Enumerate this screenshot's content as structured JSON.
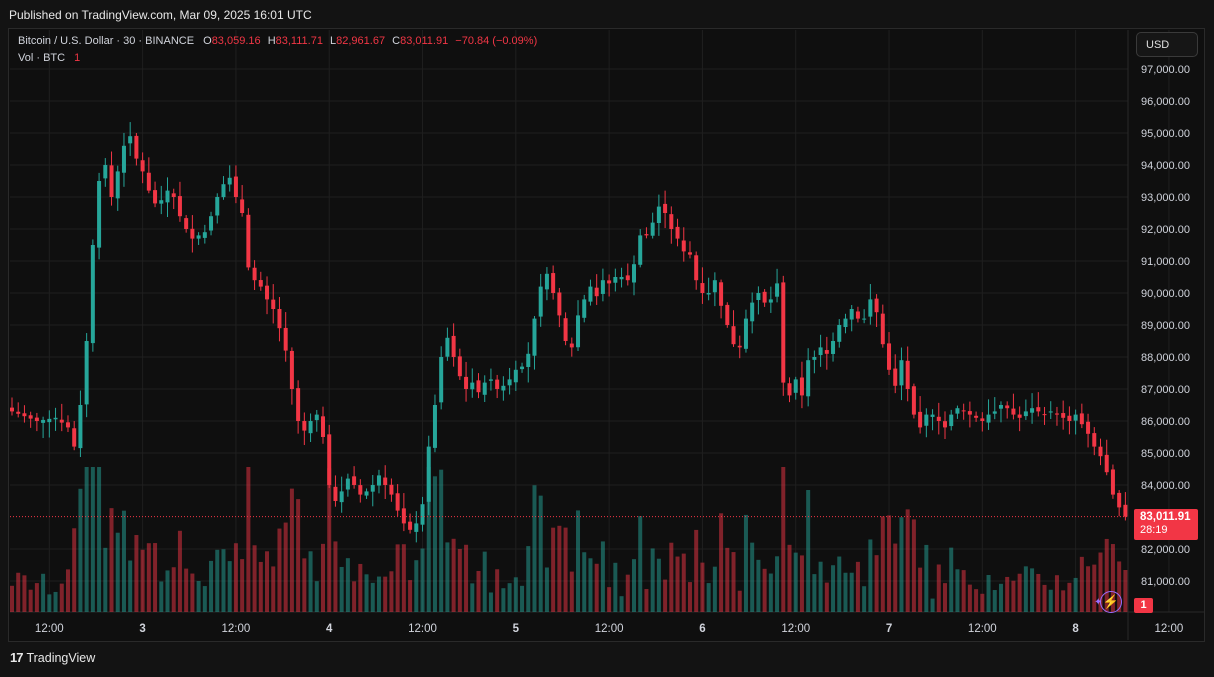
{
  "header": {
    "published": "Published on TradingView.com, Mar 09, 2025 16:01 UTC"
  },
  "legend": {
    "symbol": "Bitcoin / U.S. Dollar · 30 · BINANCE",
    "o_label": "O",
    "o_value": "83,059.16",
    "h_label": "H",
    "h_value": "83,111.71",
    "l_label": "L",
    "l_value": "82,961.67",
    "c_label": "C",
    "c_value": "83,011.91",
    "change": "−70.84 (−0.09%)",
    "vol_label": "Vol · BTC",
    "vol_value": "1"
  },
  "currency_button": "USD",
  "last_price": {
    "value": "83,011.91",
    "countdown": "28:19"
  },
  "volume_tag": "1",
  "footer": {
    "brand": "TradingView",
    "logo": "17"
  },
  "colors": {
    "up": "#26a69a",
    "down": "#f23645",
    "background": "#0f0f0f",
    "grid": "#1f1f1f",
    "text": "#d1d4dc"
  },
  "chart_data": {
    "type": "candlestick",
    "symbol": "BTCUSD",
    "interval": "30",
    "exchange": "BINANCE",
    "y_axis": {
      "min": 80000,
      "max": 97500,
      "ticks": [
        "97,000.00",
        "96,000.00",
        "95,000.00",
        "94,000.00",
        "93,000.00",
        "92,000.00",
        "91,000.00",
        "90,000.00",
        "89,000.00",
        "88,000.00",
        "87,000.00",
        "86,000.00",
        "85,000.00",
        "84,000.00",
        "82,000.00",
        "81,000.00"
      ],
      "tick_values": [
        97000,
        96000,
        95000,
        94000,
        93000,
        92000,
        91000,
        90000,
        89000,
        88000,
        87000,
        86000,
        85000,
        84000,
        82000,
        81000
      ]
    },
    "x_axis": {
      "ticks": [
        "12:00",
        "3",
        "12:00",
        "4",
        "12:00",
        "5",
        "12:00",
        "6",
        "12:00",
        "7",
        "12:00",
        "8",
        "12:00",
        "9",
        "12:00"
      ],
      "tick_bold": [
        false,
        true,
        false,
        true,
        false,
        true,
        false,
        true,
        false,
        true,
        false,
        true,
        false,
        true,
        false
      ],
      "tick_bar_index": [
        6,
        21,
        36,
        51,
        66,
        81,
        96,
        111,
        126,
        141,
        156,
        171,
        186,
        201,
        216
      ]
    },
    "last_close": 83011.91,
    "close_path": [
      [
        0,
        86300
      ],
      [
        4,
        86000
      ],
      [
        7,
        86100
      ],
      [
        9,
        85800
      ],
      [
        10,
        85200
      ],
      [
        11,
        86500
      ],
      [
        12,
        88500
      ],
      [
        13,
        91500
      ],
      [
        14,
        93500
      ],
      [
        15,
        94000
      ],
      [
        16,
        93000
      ],
      [
        17,
        93800
      ],
      [
        18,
        94600
      ],
      [
        19,
        94900
      ],
      [
        20,
        94200
      ],
      [
        21,
        93800
      ],
      [
        22,
        93200
      ],
      [
        23,
        92800
      ],
      [
        24,
        92900
      ],
      [
        25,
        93200
      ],
      [
        26,
        93000
      ],
      [
        27,
        92400
      ],
      [
        28,
        92000
      ],
      [
        29,
        91700
      ],
      [
        30,
        91800
      ],
      [
        31,
        91900
      ],
      [
        32,
        92400
      ],
      [
        33,
        93000
      ],
      [
        34,
        93400
      ],
      [
        35,
        93600
      ],
      [
        36,
        93000
      ],
      [
        37,
        92500
      ],
      [
        38,
        90800
      ],
      [
        39,
        90400
      ],
      [
        40,
        90200
      ],
      [
        41,
        89800
      ],
      [
        42,
        89500
      ],
      [
        43,
        88900
      ],
      [
        44,
        88200
      ],
      [
        45,
        87000
      ],
      [
        46,
        86000
      ],
      [
        47,
        85700
      ],
      [
        48,
        86000
      ],
      [
        49,
        86200
      ],
      [
        50,
        85500
      ],
      [
        51,
        84000
      ],
      [
        52,
        83500
      ],
      [
        53,
        83800
      ],
      [
        54,
        84200
      ],
      [
        55,
        84000
      ],
      [
        56,
        83700
      ],
      [
        57,
        83800
      ],
      [
        58,
        84000
      ],
      [
        59,
        84300
      ],
      [
        60,
        84000
      ],
      [
        61,
        83700
      ],
      [
        62,
        83200
      ],
      [
        63,
        82800
      ],
      [
        64,
        82600
      ],
      [
        65,
        82800
      ],
      [
        66,
        83400
      ],
      [
        67,
        85200
      ],
      [
        68,
        86500
      ],
      [
        69,
        88000
      ],
      [
        70,
        88600
      ],
      [
        71,
        88000
      ],
      [
        72,
        87400
      ],
      [
        73,
        87000
      ],
      [
        74,
        87200
      ],
      [
        75,
        86900
      ],
      [
        76,
        87200
      ],
      [
        77,
        87300
      ],
      [
        78,
        87000
      ],
      [
        79,
        87100
      ],
      [
        80,
        87300
      ],
      [
        81,
        87600
      ],
      [
        82,
        87700
      ],
      [
        83,
        88100
      ],
      [
        84,
        89200
      ],
      [
        85,
        90200
      ],
      [
        86,
        90600
      ],
      [
        87,
        90000
      ],
      [
        88,
        89300
      ],
      [
        89,
        88500
      ],
      [
        90,
        88300
      ],
      [
        91,
        89300
      ],
      [
        92,
        89800
      ],
      [
        93,
        90200
      ],
      [
        94,
        89900
      ],
      [
        95,
        90400
      ],
      [
        96,
        90300
      ],
      [
        97,
        90500
      ],
      [
        98,
        90500
      ],
      [
        99,
        90400
      ],
      [
        100,
        90900
      ],
      [
        101,
        91800
      ],
      [
        102,
        91800
      ],
      [
        103,
        92200
      ],
      [
        104,
        92700
      ],
      [
        105,
        92500
      ],
      [
        106,
        92000
      ],
      [
        107,
        91700
      ],
      [
        108,
        91300
      ],
      [
        109,
        91200
      ],
      [
        110,
        90400
      ],
      [
        111,
        90000
      ],
      [
        112,
        90000
      ],
      [
        113,
        90400
      ],
      [
        114,
        89600
      ],
      [
        115,
        89000
      ],
      [
        116,
        88400
      ],
      [
        117,
        88300
      ],
      [
        118,
        89200
      ],
      [
        119,
        89700
      ],
      [
        120,
        90000
      ],
      [
        121,
        89700
      ],
      [
        122,
        89800
      ],
      [
        123,
        90300
      ],
      [
        124,
        87200
      ],
      [
        125,
        86800
      ],
      [
        126,
        87300
      ],
      [
        127,
        86800
      ],
      [
        128,
        87900
      ],
      [
        129,
        88000
      ],
      [
        130,
        88300
      ],
      [
        131,
        88100
      ],
      [
        132,
        88500
      ],
      [
        133,
        89000
      ],
      [
        134,
        89200
      ],
      [
        135,
        89500
      ],
      [
        136,
        89200
      ],
      [
        137,
        89200
      ],
      [
        138,
        89800
      ],
      [
        139,
        89400
      ],
      [
        140,
        88400
      ],
      [
        141,
        87600
      ],
      [
        142,
        87100
      ],
      [
        143,
        87900
      ],
      [
        144,
        87000
      ],
      [
        145,
        86200
      ],
      [
        146,
        85800
      ],
      [
        147,
        86200
      ],
      [
        148,
        86200
      ],
      [
        149,
        86000
      ],
      [
        150,
        85800
      ],
      [
        151,
        86200
      ],
      [
        152,
        86400
      ],
      [
        153,
        86300
      ],
      [
        154,
        86200
      ],
      [
        155,
        86100
      ],
      [
        156,
        86000
      ],
      [
        157,
        86200
      ],
      [
        158,
        86300
      ],
      [
        159,
        86500
      ],
      [
        160,
        86400
      ],
      [
        161,
        86200
      ],
      [
        162,
        86100
      ],
      [
        163,
        86300
      ],
      [
        164,
        86400
      ],
      [
        165,
        86300
      ],
      [
        166,
        86200
      ],
      [
        167,
        86300
      ],
      [
        168,
        86200
      ],
      [
        169,
        86100
      ],
      [
        170,
        86000
      ],
      [
        171,
        86200
      ],
      [
        172,
        85900
      ],
      [
        173,
        85600
      ],
      [
        174,
        85200
      ],
      [
        175,
        84900
      ],
      [
        176,
        84400
      ],
      [
        177,
        83700
      ],
      [
        178,
        83300
      ],
      [
        179,
        83011.91
      ]
    ],
    "volume_max": 4.4
  }
}
